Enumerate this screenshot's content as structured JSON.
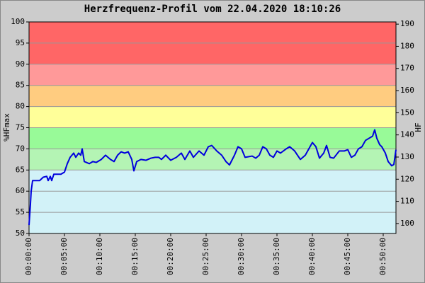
{
  "chart_data": {
    "type": "line",
    "title": "Herzfrequenz-Profil vom 22.04.2020 18:10:26",
    "y_label": "%HFmax",
    "y2_label": "HF",
    "xlim": [
      0,
      3108
    ],
    "xticks": [
      {
        "value": 0,
        "label": "00:00:00"
      },
      {
        "value": 300,
        "label": "00:05:00"
      },
      {
        "value": 600,
        "label": "00:10:00"
      },
      {
        "value": 900,
        "label": "00:15:00"
      },
      {
        "value": 1200,
        "label": "00:20:00"
      },
      {
        "value": 1500,
        "label": "00:25:00"
      },
      {
        "value": 1800,
        "label": "00:30:00"
      },
      {
        "value": 2100,
        "label": "00:35:00"
      },
      {
        "value": 2400,
        "label": "00:40:00"
      },
      {
        "value": 2700,
        "label": "00:45:00"
      },
      {
        "value": 3000,
        "label": "00:50:00"
      }
    ],
    "ylim": [
      50,
      100
    ],
    "yticks": [
      50,
      55,
      60,
      65,
      70,
      75,
      80,
      85,
      90,
      95,
      100
    ],
    "y2lim": [
      95.5,
      191
    ],
    "y2ticks": [
      100,
      110,
      120,
      130,
      140,
      150,
      160,
      170,
      180,
      190
    ],
    "grid": true,
    "zones": [
      {
        "from": 50,
        "to": 65,
        "color": "#d2f2f8"
      },
      {
        "from": 65,
        "to": 70,
        "color": "#b4f4b4"
      },
      {
        "from": 70,
        "to": 75,
        "color": "#98fa98"
      },
      {
        "from": 75,
        "to": 80,
        "color": "#ffff99"
      },
      {
        "from": 80,
        "to": 85,
        "color": "#ffcc80"
      },
      {
        "from": 85,
        "to": 90,
        "color": "#ff9999"
      },
      {
        "from": 90,
        "to": 100,
        "color": "#ff6666"
      }
    ],
    "x": [
      0,
      12,
      18,
      30,
      90,
      120,
      150,
      162,
      180,
      192,
      210,
      270,
      300,
      324,
      348,
      378,
      396,
      420,
      438,
      450,
      468,
      510,
      540,
      570,
      612,
      648,
      690,
      720,
      750,
      780,
      810,
      840,
      870,
      888,
      912,
      948,
      990,
      1032,
      1068,
      1098,
      1122,
      1158,
      1200,
      1248,
      1290,
      1320,
      1362,
      1392,
      1440,
      1482,
      1518,
      1548,
      1590,
      1632,
      1668,
      1698,
      1740,
      1770,
      1800,
      1830,
      1890,
      1920,
      1950,
      1980,
      2010,
      2040,
      2070,
      2100,
      2130,
      2178,
      2208,
      2250,
      2298,
      2340,
      2370,
      2400,
      2430,
      2460,
      2496,
      2520,
      2550,
      2580,
      2628,
      2670,
      2700,
      2730,
      2760,
      2790,
      2820,
      2850,
      2880,
      2910,
      2928,
      2946,
      2970,
      2988,
      3018,
      3042,
      3072,
      3090,
      3108
    ],
    "series": [
      {
        "color": "#0000dd",
        "values": [
          52,
          57,
          60,
          62.5,
          62.5,
          63.3,
          63.5,
          62.5,
          63.5,
          62.5,
          64,
          64,
          64.5,
          66.5,
          68,
          69,
          68,
          69,
          68.5,
          70,
          67,
          66.5,
          67,
          66.8,
          67.5,
          68.5,
          67.5,
          67,
          68.5,
          69.3,
          69,
          69.3,
          67.5,
          64.8,
          67,
          67.5,
          67.3,
          67.8,
          68,
          68,
          67.5,
          68.5,
          67.3,
          68,
          69,
          67.5,
          69.5,
          68,
          69.5,
          68.5,
          70.5,
          70.8,
          69.5,
          68.5,
          67,
          66.2,
          68.5,
          70.5,
          70,
          68,
          68.3,
          67.8,
          68.5,
          70.5,
          70,
          68.5,
          68,
          69.5,
          69,
          70,
          70.5,
          69.5,
          67.5,
          68.5,
          70,
          71.5,
          70.5,
          67.8,
          69,
          70.8,
          68,
          67.8,
          69.5,
          69.5,
          69.8,
          68,
          68.5,
          70,
          70.5,
          72,
          72.5,
          73,
          74.5,
          72.5,
          71,
          70.5,
          69,
          67,
          66,
          66.3,
          69.8
        ]
      }
    ]
  }
}
